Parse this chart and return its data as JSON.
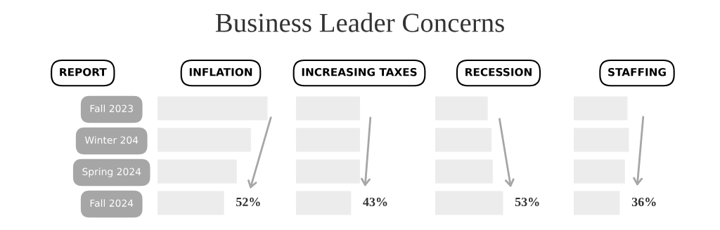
{
  "chart_data": [
    {
      "type": "other",
      "title": "Business Leader Concerns"
    },
    {
      "type": "bar",
      "orientation": "horizontal",
      "title": "INFLATION",
      "ylabel": "REPORT",
      "tick_labels": "y",
      "categories": [
        "Fall 2023",
        "Winter 204",
        "Spring 2024",
        "Fall 2024"
      ],
      "values": [
        86,
        73,
        62,
        52
      ],
      "color": "#ececec",
      "value_labels": [
        null,
        null,
        null,
        "52%"
      ]
    },
    {
      "type": "bar",
      "orientation": "horizontal",
      "title": "INCREASING TAXES",
      "tick_labels": false,
      "categories": [
        null,
        null,
        null,
        null
      ],
      "values": [
        50,
        50,
        50,
        43
      ],
      "color": "#ececec",
      "value_labels": [
        null,
        null,
        null,
        "43%"
      ]
    },
    {
      "type": "bar",
      "orientation": "horizontal",
      "title": "RECESSION",
      "tick_labels": false,
      "categories": [
        null,
        null,
        null,
        null
      ],
      "values": [
        41,
        44,
        45,
        53
      ],
      "color": "#ececec",
      "value_labels": [
        null,
        null,
        null,
        "53%"
      ]
    },
    {
      "type": "bar",
      "orientation": "horizontal",
      "title": "STAFFING",
      "tick_labels": false,
      "categories": [
        null,
        null,
        null,
        null
      ],
      "values": [
        42,
        43,
        40,
        36
      ],
      "color": "#ececec",
      "value_labels": [
        null,
        null,
        null,
        "36%"
      ]
    }
  ]
}
